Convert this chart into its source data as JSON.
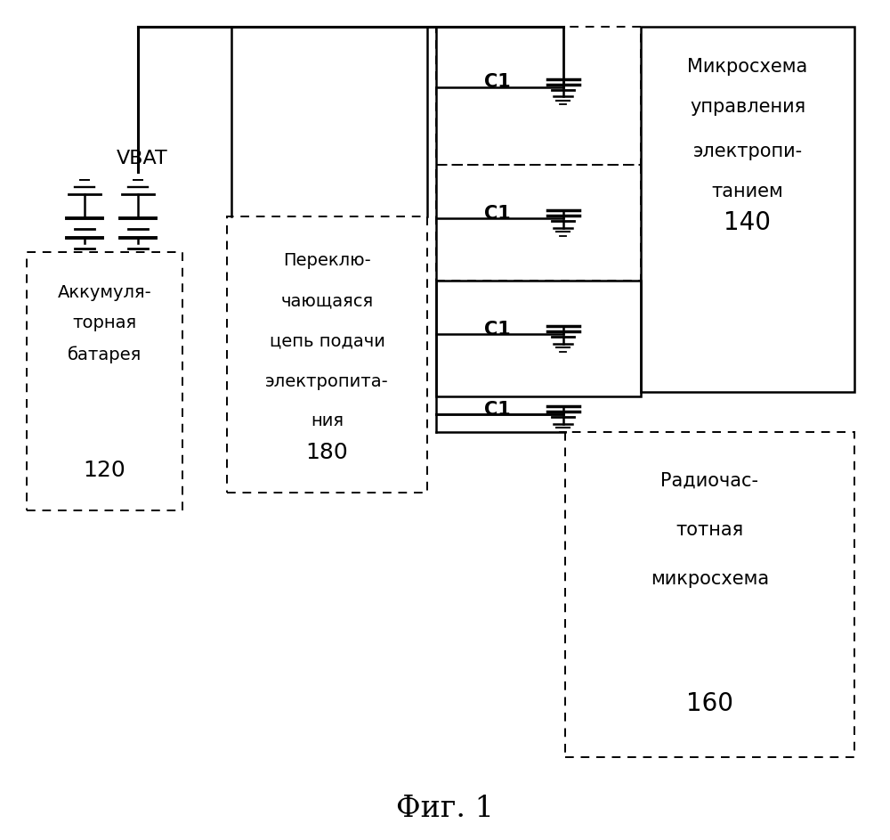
{
  "bg_color": "#ffffff",
  "fig_width": 10.0,
  "fig_height": 9.43,
  "title": "Фиг. 1",
  "title_fontsize": 24,
  "title_font": "serif",
  "vbat_label": "VBAT",
  "battery_label1": "Аккумуля-",
  "battery_label2": "торная",
  "battery_label3": "батарея",
  "battery_num": "120",
  "switch_label1": "Переклю-",
  "switch_label2": "чающаяся",
  "switch_label3": "цепь подачи",
  "switch_label4": "электропита-",
  "switch_label5": "ния",
  "switch_num": "180",
  "pmic_label1": "Микросхема",
  "pmic_label2": "управления",
  "pmic_label3": "электропи-",
  "pmic_label4": "танием",
  "pmic_num": "140",
  "rf_label1": "Радиочас-",
  "rf_label2": "тотная",
  "rf_label3": "микросхема",
  "rf_num": "160",
  "cap_label": "C1"
}
